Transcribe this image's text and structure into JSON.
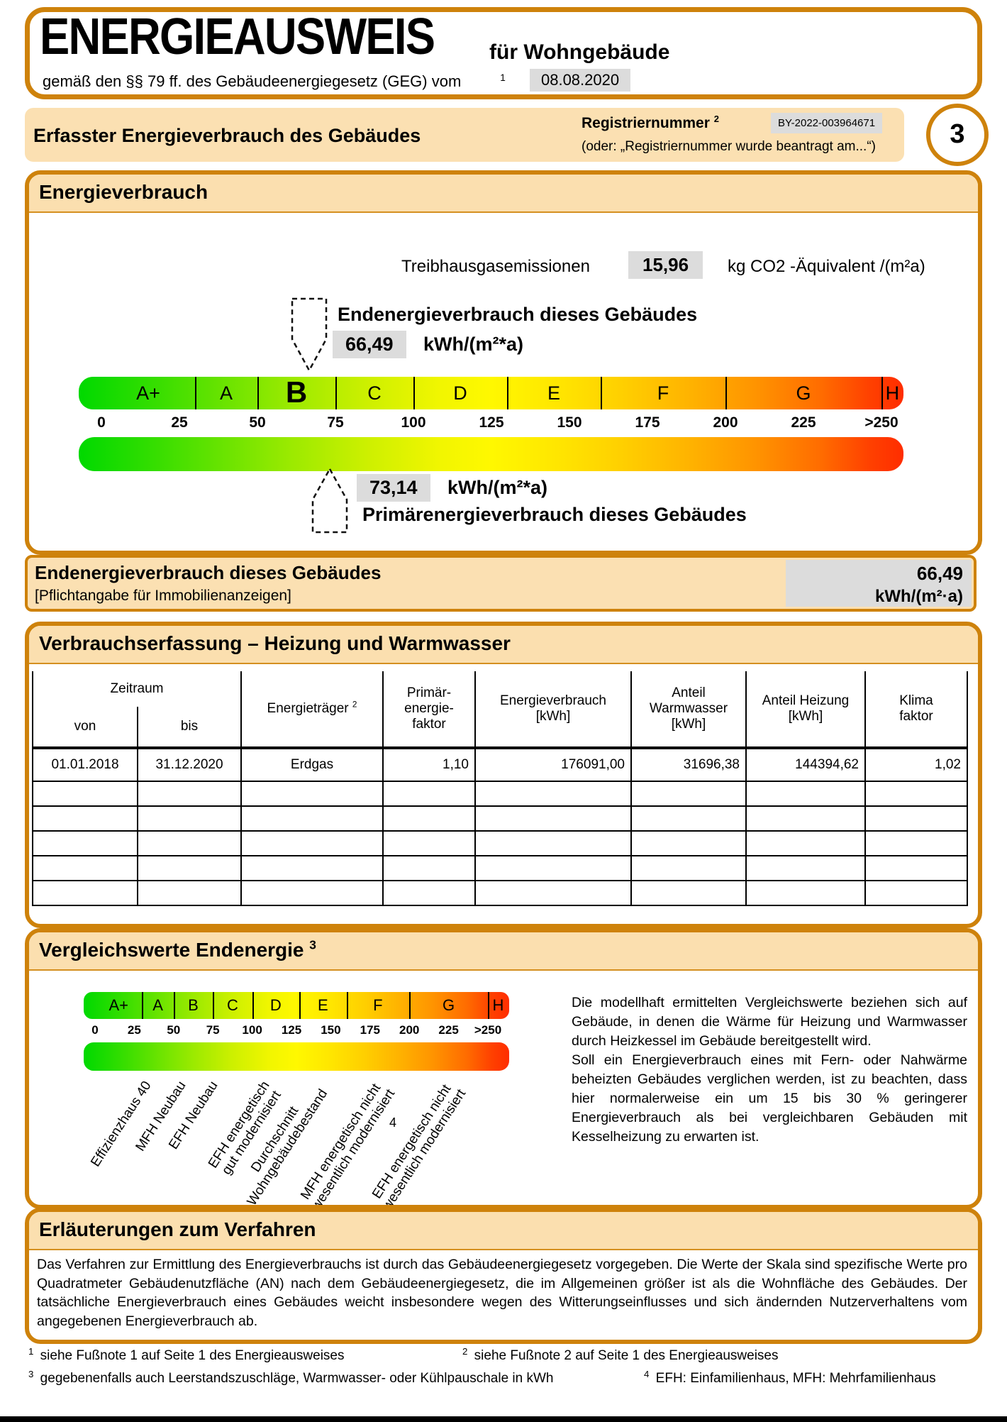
{
  "header": {
    "title": "ENERGIEAUSWEIS",
    "title_suffix": "für Wohngebäude",
    "subtitle": "gemäß den §§ 79 ff. des Gebäudeenergiegesetz (GEG) vom",
    "subtitle_footnote": "1",
    "date": "08.08.2020"
  },
  "section_bar": {
    "title": "Erfasster Energieverbrauch des Gebäudes",
    "reg_label": "Registriernummer",
    "reg_footnote": "2",
    "reg_value": "BY-2022-003964671",
    "reg_note": "(oder: „Registriernummer wurde beantragt am...“)",
    "page_number": "3"
  },
  "energy": {
    "section_title": "Energieverbrauch",
    "ghg_label": "Treibhausgasemissionen",
    "ghg_value": "15,96",
    "ghg_unit": "kg CO2 -Äquivalent /(m²a)",
    "end_label": "Endenergieverbrauch dieses Gebäudes",
    "end_value": "66,49",
    "end_unit": "kWh/(m²*a)",
    "primary_value": "73,14",
    "primary_unit": "kWh/(m²*a)",
    "primary_label": "Primärenergieverbrauch dieses Gebäudes",
    "scale": {
      "highlight": "B",
      "classes": [
        {
          "label": "A+",
          "from": 0,
          "to": 30
        },
        {
          "label": "A",
          "from": 30,
          "to": 50
        },
        {
          "label": "B",
          "from": 50,
          "to": 75
        },
        {
          "label": "C",
          "from": 75,
          "to": 100
        },
        {
          "label": "D",
          "from": 100,
          "to": 130
        },
        {
          "label": "E",
          "from": 130,
          "to": 160
        },
        {
          "label": "F",
          "from": 160,
          "to": 200
        },
        {
          "label": "G",
          "from": 200,
          "to": 250
        },
        {
          "label": "H",
          "from": 250,
          "to": 257
        }
      ],
      "ticks": [
        {
          "label": "0",
          "v": 0
        },
        {
          "label": "25",
          "v": 25
        },
        {
          "label": "50",
          "v": 50
        },
        {
          "label": "75",
          "v": 75
        },
        {
          "label": "100",
          "v": 100
        },
        {
          "label": "125",
          "v": 125
        },
        {
          "label": "150",
          "v": 150
        },
        {
          "label": "175",
          "v": 175
        },
        {
          "label": "200",
          "v": 200
        },
        {
          "label": "225",
          "v": 225
        },
        {
          "label": ">250",
          "v": 250
        }
      ]
    }
  },
  "end_banner": {
    "title": "Endenergieverbrauch dieses Gebäudes",
    "subtitle": "[Pflichtangabe für Immobilienanzeigen]",
    "value": "66,49",
    "unit": "kWh/(m²·a)"
  },
  "consumption": {
    "section_title": "Verbrauchserfassung – Heizung und Warmwasser",
    "col_zeitraum": "Zeitraum",
    "col_von": "von",
    "col_bis": "bis",
    "col_energietraeger": {
      "label": "Energieträger",
      "footnote": "2"
    },
    "col_pef": [
      "Primär-",
      "energie-",
      "faktor"
    ],
    "col_verbrauch": [
      "Energieverbrauch",
      "[kWh]"
    ],
    "col_warmwasser": [
      "Anteil",
      "Warmwasser",
      "[kWh]"
    ],
    "col_heizung": [
      "Anteil Heizung",
      "[kWh]"
    ],
    "col_klima": [
      "Klima",
      "faktor"
    ],
    "rows": [
      [
        "01.01.2018",
        "31.12.2020",
        "Erdgas",
        "1,10",
        "176091,00",
        "31696,38",
        "144394,62",
        "1,02"
      ]
    ],
    "empty_rows": 5
  },
  "comparison": {
    "section_title": "Vergleichswerte Endenergie",
    "section_footnote": "3",
    "scale": {
      "highlight": null,
      "classes": [
        {
          "label": "A+",
          "from": 0,
          "to": 30
        },
        {
          "label": "A",
          "from": 30,
          "to": 50
        },
        {
          "label": "B",
          "from": 50,
          "to": 75
        },
        {
          "label": "C",
          "from": 75,
          "to": 100
        },
        {
          "label": "D",
          "from": 100,
          "to": 130
        },
        {
          "label": "E",
          "from": 130,
          "to": 160
        },
        {
          "label": "F",
          "from": 160,
          "to": 200
        },
        {
          "label": "G",
          "from": 200,
          "to": 250
        },
        {
          "label": "H",
          "from": 250,
          "to": 263
        }
      ],
      "ticks": [
        {
          "label": "0",
          "v": 0
        },
        {
          "label": "25",
          "v": 25
        },
        {
          "label": "50",
          "v": 50
        },
        {
          "label": "75",
          "v": 75
        },
        {
          "label": "100",
          "v": 100
        },
        {
          "label": "125",
          "v": 125
        },
        {
          "label": "150",
          "v": 150
        },
        {
          "label": "175",
          "v": 175
        },
        {
          "label": "200",
          "v": 200
        },
        {
          "label": "225",
          "v": 225
        },
        {
          "label": ">250",
          "v": 250
        }
      ]
    },
    "items": [
      {
        "lines": [
          "Effizienzhaus 40"
        ],
        "value": 30
      },
      {
        "lines": [
          "MFH Neubau"
        ],
        "value": 52
      },
      {
        "lines": [
          "EFH Neubau"
        ],
        "value": 72
      },
      {
        "lines": [
          "EFH energetisch",
          "gut modernisiert"
        ],
        "value": 105
      },
      {
        "lines": [
          "Durchschnitt",
          "Wohngebäudebestand"
        ],
        "value": 134
      },
      {
        "lines": [
          "MFH energetisch nicht",
          "wesentlich modernisiert"
        ],
        "value": 177
      },
      {
        "lines": [
          "EFH energetisch nicht",
          "wesentlich modernisiert"
        ],
        "value": 222
      }
    ],
    "note_marker": "4",
    "paragraphs": [
      "Die modellhaft ermittelten Vergleichswerte beziehen sich auf Gebäude, in denen die Wärme für Heizung und Warmwasser durch Heizkessel im Gebäude bereitgestellt wird.",
      "Soll ein Energieverbrauch eines mit Fern- oder Nahwärme beheizten Gebäudes verglichen werden, ist zu beachten, dass hier normalerweise ein um 15 bis 30 % geringerer Energieverbrauch als bei vergleichbaren Gebäuden mit Kesselheizung zu erwarten ist."
    ]
  },
  "explanation": {
    "title": "Erläuterungen zum Verfahren",
    "text": "Das Verfahren zur Ermittlung des Energieverbrauchs ist durch das Gebäudeenergiegesetz vorgegeben. Die Werte der Skala sind spezifische Werte pro Quadratmeter Gebäudenutzfläche (AN) nach dem Gebäudeenergiegesetz, die im Allgemeinen größer ist als die Wohnfläche des Gebäudes. Der tatsächliche Energieverbrauch eines Gebäudes weicht insbesondere wegen des Witterungseinflusses und sich ändernden Nutzerverhaltens vom angegebenen Energieverbrauch ab."
  },
  "footnotes": [
    {
      "num": "1",
      "text": "siehe Fußnote 1 auf Seite 1 des Energieausweises"
    },
    {
      "num": "2",
      "text": "siehe Fußnote 2 auf Seite 1 des Energieausweises"
    },
    {
      "num": "3",
      "text": "gegebenenfalls auch Leerstandszuschläge, Warmwasser- oder Kühlpauschale in kWh"
    },
    {
      "num": "4",
      "text": "EFH: Einfamilienhaus, MFH: Mehrfamilienhaus"
    }
  ]
}
